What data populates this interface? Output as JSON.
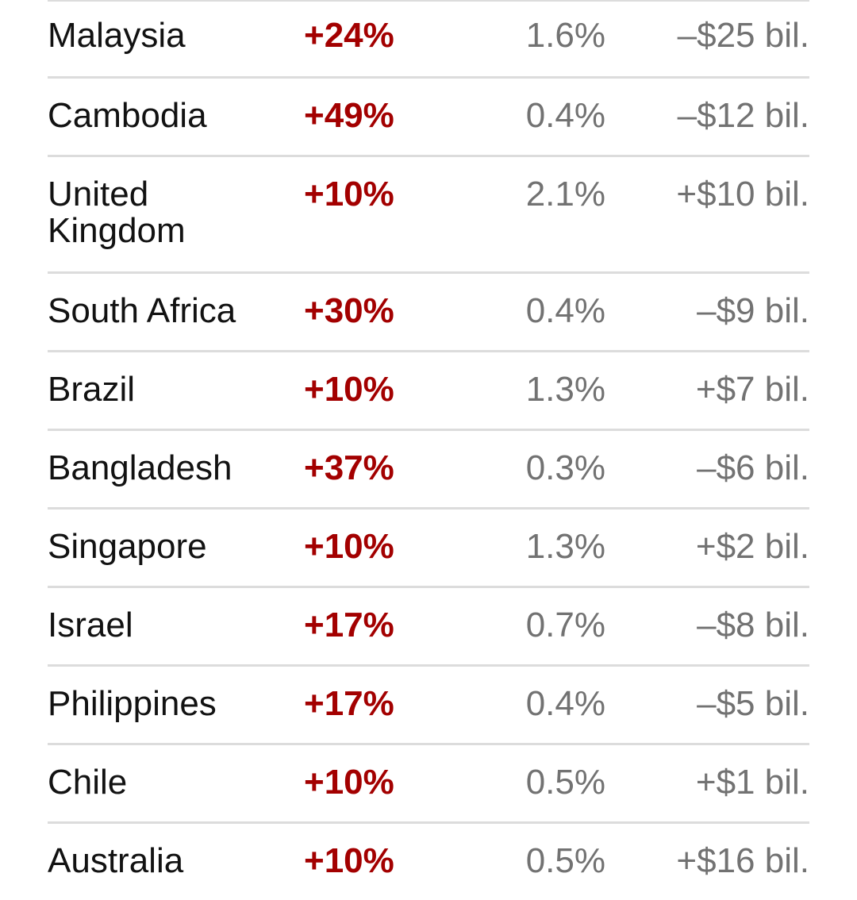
{
  "rows": [
    {
      "country": "Malaysia",
      "tariff": "+24%",
      "share": "1.6%",
      "balance": "–$25 bil."
    },
    {
      "country": "Cambodia",
      "tariff": "+49%",
      "share": "0.4%",
      "balance": "–$12 bil."
    },
    {
      "country": "United Kingdom",
      "tariff": "+10%",
      "share": "2.1%",
      "balance": "+$10 bil."
    },
    {
      "country": "South Africa",
      "tariff": "+30%",
      "share": "0.4%",
      "balance": "–$9 bil."
    },
    {
      "country": "Brazil",
      "tariff": "+10%",
      "share": "1.3%",
      "balance": "+$7 bil."
    },
    {
      "country": "Bangladesh",
      "tariff": "+37%",
      "share": "0.3%",
      "balance": "–$6 bil."
    },
    {
      "country": "Singapore",
      "tariff": "+10%",
      "share": "1.3%",
      "balance": "+$2 bil."
    },
    {
      "country": "Israel",
      "tariff": "+17%",
      "share": "0.7%",
      "balance": "–$8 bil."
    },
    {
      "country": "Philippines",
      "tariff": "+17%",
      "share": "0.4%",
      "balance": "–$5 bil."
    },
    {
      "country": "Chile",
      "tariff": "+10%",
      "share": "0.5%",
      "balance": "+$1 bil."
    },
    {
      "country": "Australia",
      "tariff": "+10%",
      "share": "0.5%",
      "balance": "+$16 bil."
    }
  ],
  "colors": {
    "tariff": "#a30000",
    "country": "#121212",
    "secondary": "#727272",
    "divider": "#dcdcdc"
  }
}
